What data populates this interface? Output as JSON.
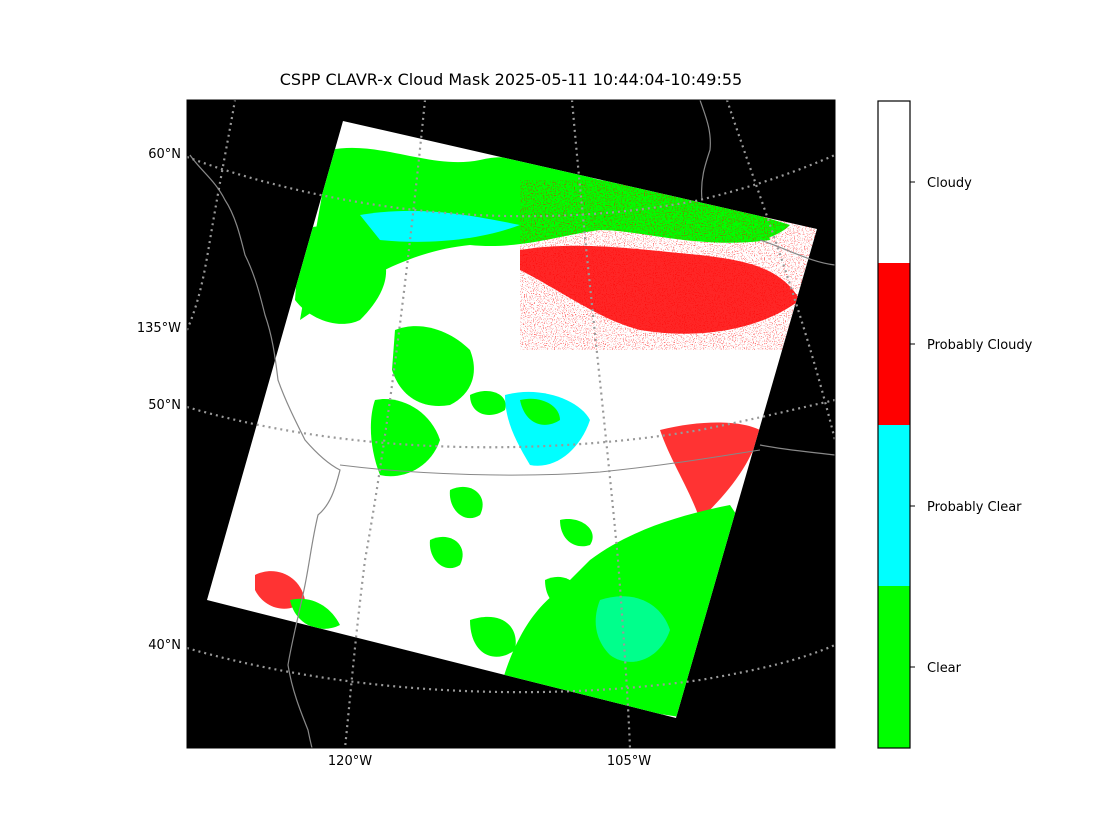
{
  "map": {
    "title": "CSPP CLAVR-x Cloud Mask 2025-05-11 10:44:04-10:49:55",
    "lat_labels": [
      "60°N",
      "50°N",
      "40°N"
    ],
    "lon_labels_left": [
      "135°W"
    ],
    "lon_labels_bottom": [
      "120°W",
      "105°W"
    ],
    "background_color": "#000000",
    "graticule_color": "#888888",
    "coastline_color": "#888888"
  },
  "legend": {
    "categories": [
      {
        "label": "Cloudy",
        "color": "#ffffff"
      },
      {
        "label": "Probably Cloudy",
        "color": "#ff0000"
      },
      {
        "label": "Probably Clear",
        "color": "#00ffff"
      },
      {
        "label": "Clear",
        "color": "#00ff00"
      }
    ]
  }
}
